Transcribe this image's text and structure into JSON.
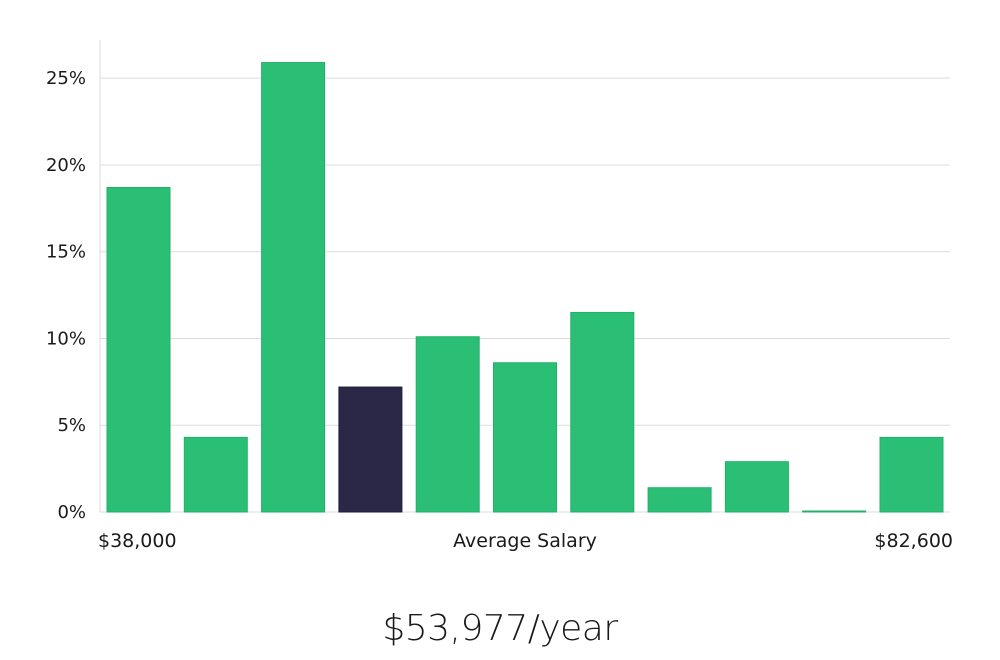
{
  "chart_data": {
    "type": "bar",
    "categories": [
      "",
      "",
      "",
      "",
      "",
      "",
      "",
      "",
      "",
      "",
      ""
    ],
    "values": [
      18.7,
      4.3,
      25.9,
      7.2,
      10.1,
      8.6,
      11.5,
      1.4,
      2.9,
      0.05,
      4.3
    ],
    "highlight_index": 3,
    "ylim": [
      0,
      27.2
    ],
    "yticks": [
      0,
      5,
      10,
      15,
      20,
      25
    ],
    "ytick_labels": [
      "0%",
      "5%",
      "10%",
      "15%",
      "20%",
      "25%"
    ],
    "grid": true,
    "xlabel": "Average Salary",
    "x_min_label": "$38,000",
    "x_max_label": "$82,600",
    "colors": {
      "bar": "#2bbf76",
      "bar_edge": "#22b06a",
      "highlight": "#2a2747",
      "grid": "#dddddd",
      "axis": "#dddddd"
    }
  },
  "salary": {
    "display": "$53,977/year"
  }
}
